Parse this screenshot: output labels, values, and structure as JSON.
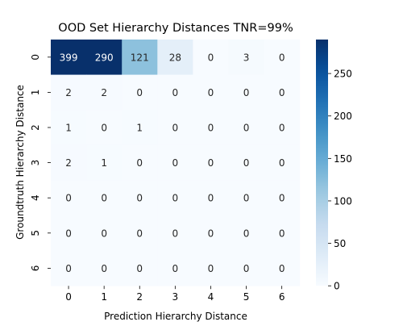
{
  "chart_data": {
    "type": "heatmap",
    "title": "OOD Set Hierarchy Distances TNR=99%",
    "xlabel": "Prediction Hierarchy Distance",
    "ylabel": "Groundtruth Hierarchy Distance",
    "x_categories": [
      "0",
      "1",
      "2",
      "3",
      "4",
      "5",
      "6"
    ],
    "y_categories": [
      "0",
      "1",
      "2",
      "3",
      "4",
      "5",
      "6"
    ],
    "values": [
      [
        399,
        290,
        121,
        28,
        0,
        3,
        0
      ],
      [
        2,
        2,
        0,
        0,
        0,
        0,
        0
      ],
      [
        1,
        0,
        1,
        0,
        0,
        0,
        0
      ],
      [
        2,
        1,
        0,
        0,
        0,
        0,
        0
      ],
      [
        0,
        0,
        0,
        0,
        0,
        0,
        0
      ],
      [
        0,
        0,
        0,
        0,
        0,
        0,
        0
      ],
      [
        0,
        0,
        0,
        0,
        0,
        0,
        0
      ]
    ],
    "colormap": "Blues",
    "color_range": [
      0,
      290
    ],
    "colorbar_ticks": [
      0,
      50,
      100,
      150,
      200,
      250
    ],
    "grid": false
  }
}
